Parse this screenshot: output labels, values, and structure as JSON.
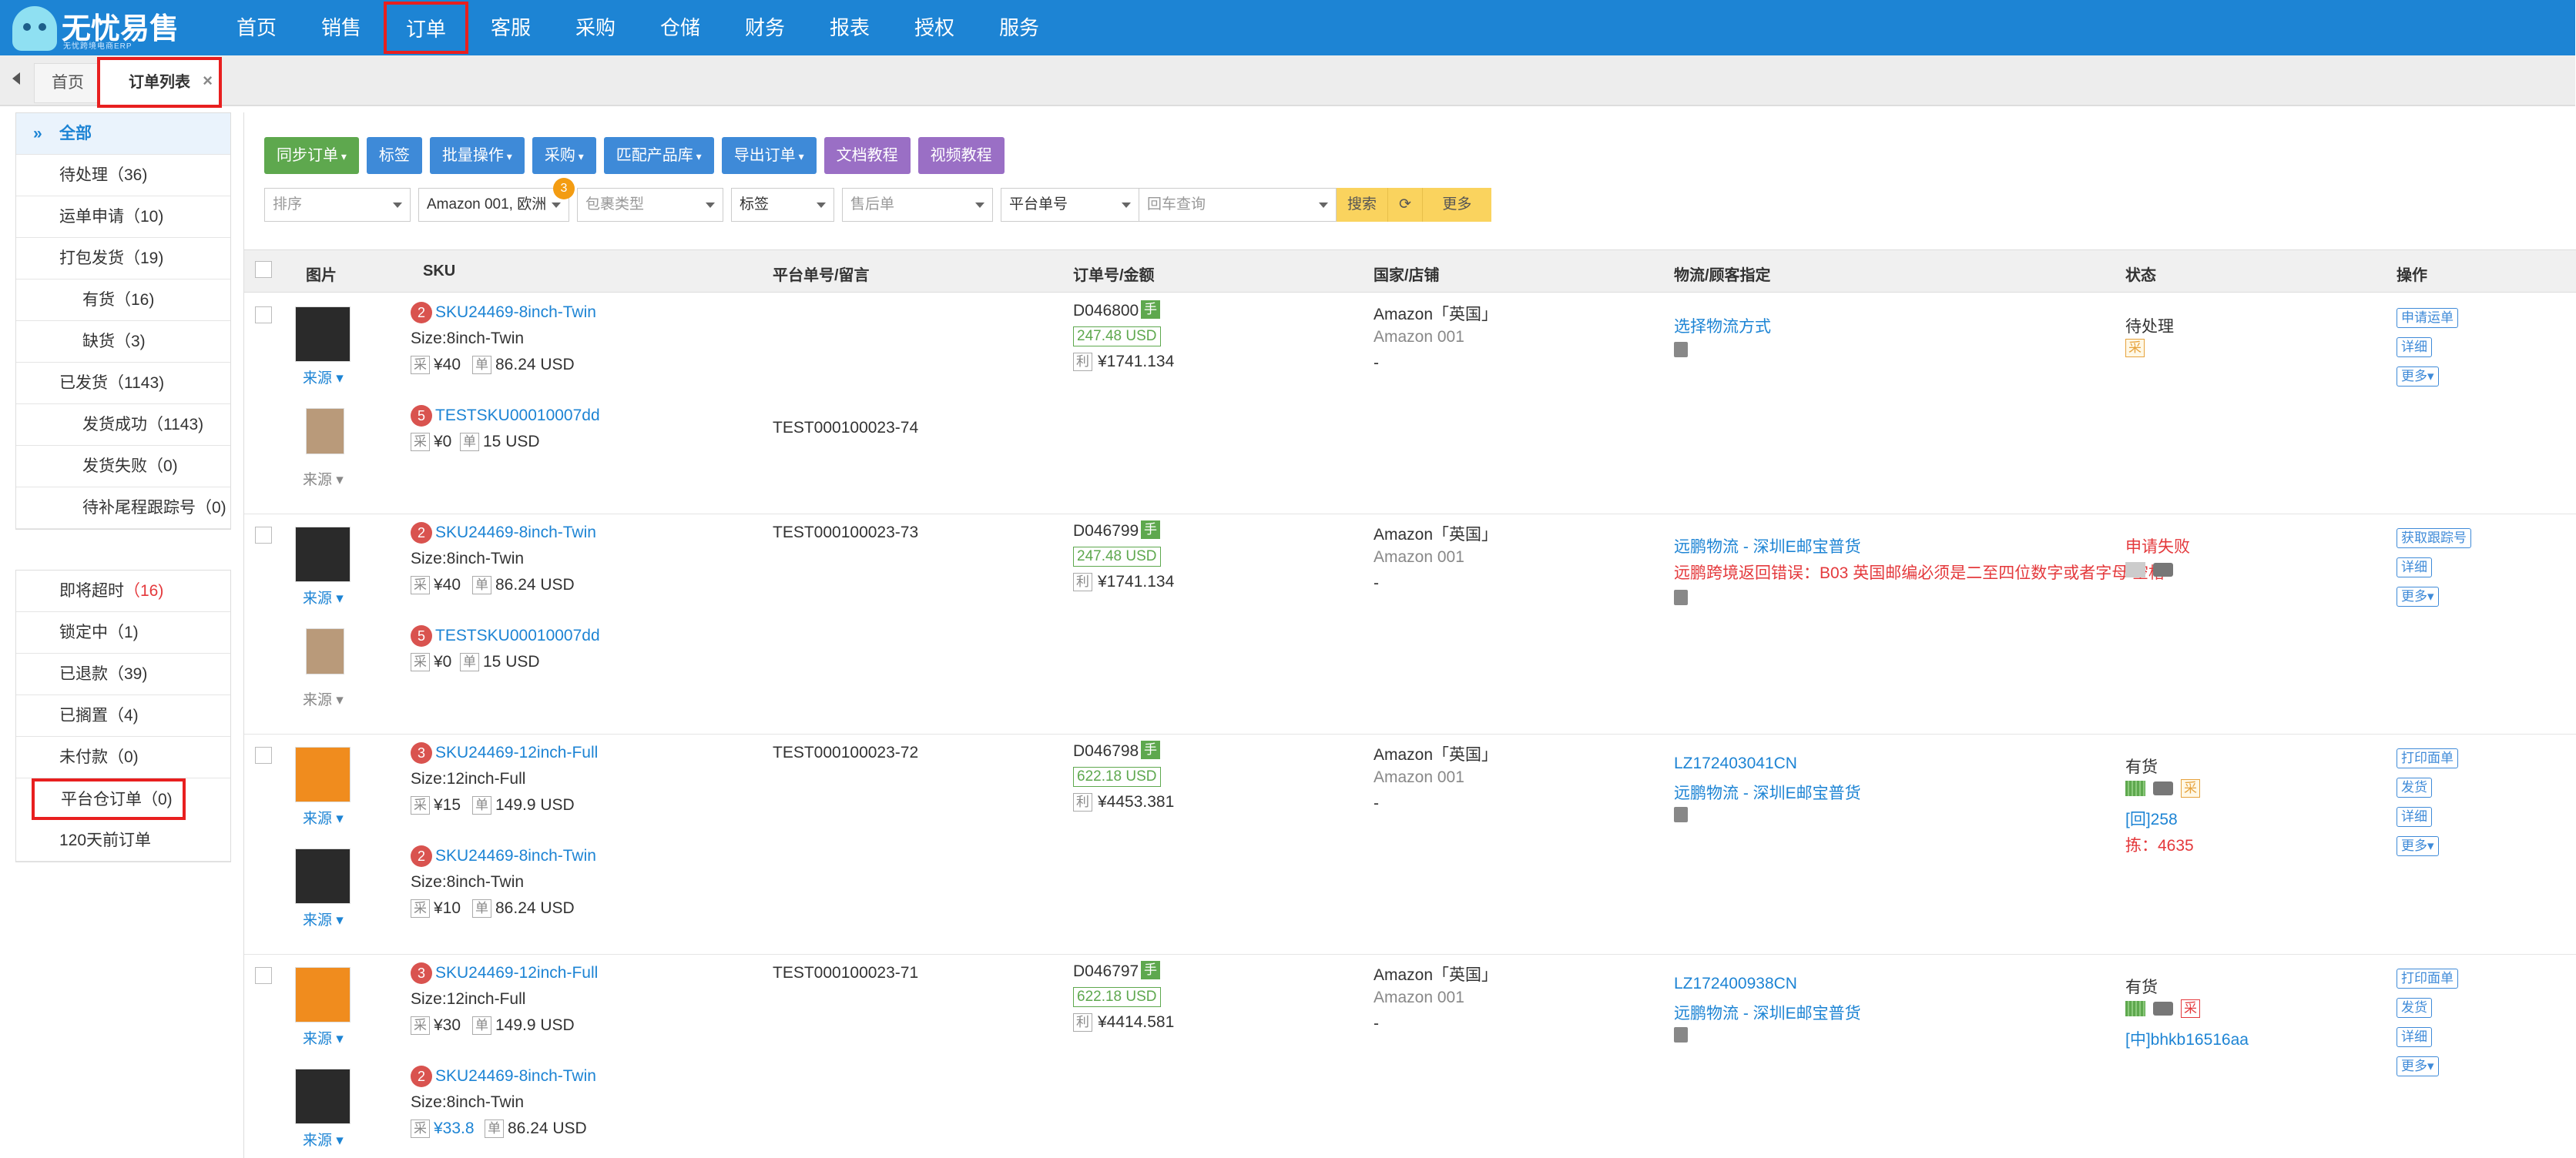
{
  "brand": {
    "name": "无忧易售",
    "slogan": "无忧跨境电商ERP"
  },
  "nav": [
    "首页",
    "销售",
    "订单",
    "客服",
    "采购",
    "仓储",
    "财务",
    "报表",
    "授权",
    "服务"
  ],
  "tabs": {
    "home": "首页",
    "current": "订单列表",
    "close": "×"
  },
  "sidebar": {
    "group1": [
      "全部",
      "待处理（36)",
      "运单申请（10)",
      "打包发货（19)",
      "有货（16)",
      "缺货（3)",
      "已发货（1143)",
      "发货成功（1143)",
      "发货失败（0)",
      "待补尾程跟踪号（0)"
    ],
    "group2": [
      {
        "label": "即将超时",
        "count": "（16)"
      },
      {
        "label": "锁定中（1)"
      },
      {
        "label": "已退款（39)"
      },
      {
        "label": "已搁置（4)"
      },
      {
        "label": "未付款（0)"
      },
      {
        "label": "平台仓订单（0)"
      },
      {
        "label": "120天前订单"
      }
    ]
  },
  "toolbar": [
    "同步订单",
    "标签",
    "批量操作",
    "采购",
    "匹配产品库",
    "导出订单",
    "文档教程",
    "视频教程"
  ],
  "filters": {
    "sort": "排序",
    "shop": "Amazon 001, 欧洲",
    "shop_badge": "3",
    "package": "包裹类型",
    "tag": "标签",
    "aftersale": "售后单",
    "field": "平台单号",
    "search_placeholder": "回车查询",
    "search": "搜索",
    "more": "更多"
  },
  "columns": [
    "图片",
    "SKU",
    "平台单号/留言",
    "订单号/金额",
    "国家/店铺",
    "物流/顾客指定",
    "状态",
    "操作"
  ],
  "source": "来源",
  "rows": [
    {
      "items": [
        {
          "n": "2",
          "sku": "SKU24469-8inch-Twin",
          "size": "Size:8inch-Twin",
          "price": "¥40",
          "usd": "86.24 USD"
        },
        {
          "n": "5",
          "sku": "TESTSKU00010007dd",
          "size": "",
          "price": "¥0",
          "usd": "15 USD"
        }
      ],
      "platform": "TEST000100023-74",
      "order": "D046800",
      "hand": "手",
      "amount": "247.48 USD",
      "profit_tag": "利",
      "profit": "¥1741.134",
      "country": "Amazon「英国」",
      "shop": "Amazon 001",
      "dash": "-",
      "logistics": [
        "选择物流方式"
      ],
      "status": "待处理",
      "status_tag": "采",
      "ops": [
        "申请运单",
        "详细",
        "更多"
      ]
    },
    {
      "items": [
        {
          "n": "2",
          "sku": "SKU24469-8inch-Twin",
          "size": "Size:8inch-Twin",
          "price": "¥40",
          "usd": "86.24 USD"
        },
        {
          "n": "5",
          "sku": "TESTSKU00010007dd",
          "size": "",
          "price": "¥0",
          "usd": "15 USD"
        }
      ],
      "platform": "TEST000100023-73",
      "order": "D046799",
      "hand": "手",
      "amount": "247.48 USD",
      "profit_tag": "利",
      "profit": "¥1741.134",
      "country": "Amazon「英国」",
      "shop": "Amazon 001",
      "dash": "-",
      "logistics": [
        "远鹏物流 - 深圳E邮宝普货",
        "远鹏跨境返回错误：B03 英国邮编必须是二至四位数字或者字母 空格"
      ],
      "status": "申请失败",
      "ops": [
        "获取跟踪号",
        "详细",
        "更多"
      ]
    },
    {
      "items": [
        {
          "n": "3",
          "sku": "SKU24469-12inch-Full",
          "size": "Size:12inch-Full",
          "price": "¥15",
          "usd": "149.9 USD"
        },
        {
          "n": "2",
          "sku": "SKU24469-8inch-Twin",
          "size": "Size:8inch-Twin",
          "price": "¥10",
          "usd": "86.24 USD"
        }
      ],
      "platform": "TEST000100023-72",
      "order": "D046798",
      "hand": "手",
      "amount": "622.18 USD",
      "profit_tag": "利",
      "profit": "¥4453.381",
      "country": "Amazon「英国」",
      "shop": "Amazon 001",
      "dash": "-",
      "logistics": [
        "LZ172403041CN",
        "远鹏物流 - 深圳E邮宝普货"
      ],
      "status": "有货",
      "status_tag": "采",
      "extra": [
        "[回]258",
        "拣：4635"
      ],
      "ops": [
        "打印面单",
        "发货",
        "详细",
        "更多"
      ]
    },
    {
      "items": [
        {
          "n": "3",
          "sku": "SKU24469-12inch-Full",
          "size": "Size:12inch-Full",
          "price": "¥30",
          "usd": "149.9 USD"
        },
        {
          "n": "2",
          "sku": "SKU24469-8inch-Twin",
          "size": "Size:8inch-Twin",
          "price": "¥33.8",
          "usd": "86.24 USD"
        }
      ],
      "platform": "TEST000100023-71",
      "order": "D046797",
      "hand": "手",
      "amount": "622.18 USD",
      "profit_tag": "利",
      "profit": "¥4414.581",
      "country": "Amazon「英国」",
      "shop": "Amazon 001",
      "dash": "-",
      "logistics": [
        "LZ172400938CN",
        "远鹏物流 - 深圳E邮宝普货"
      ],
      "status": "有货",
      "status_tag": "采",
      "extra": [
        "[中]bhkb16516aa"
      ],
      "ops": [
        "打印面单",
        "发货",
        "详细",
        "更多"
      ]
    }
  ],
  "tags": {
    "cai": "采",
    "dan": "单"
  }
}
